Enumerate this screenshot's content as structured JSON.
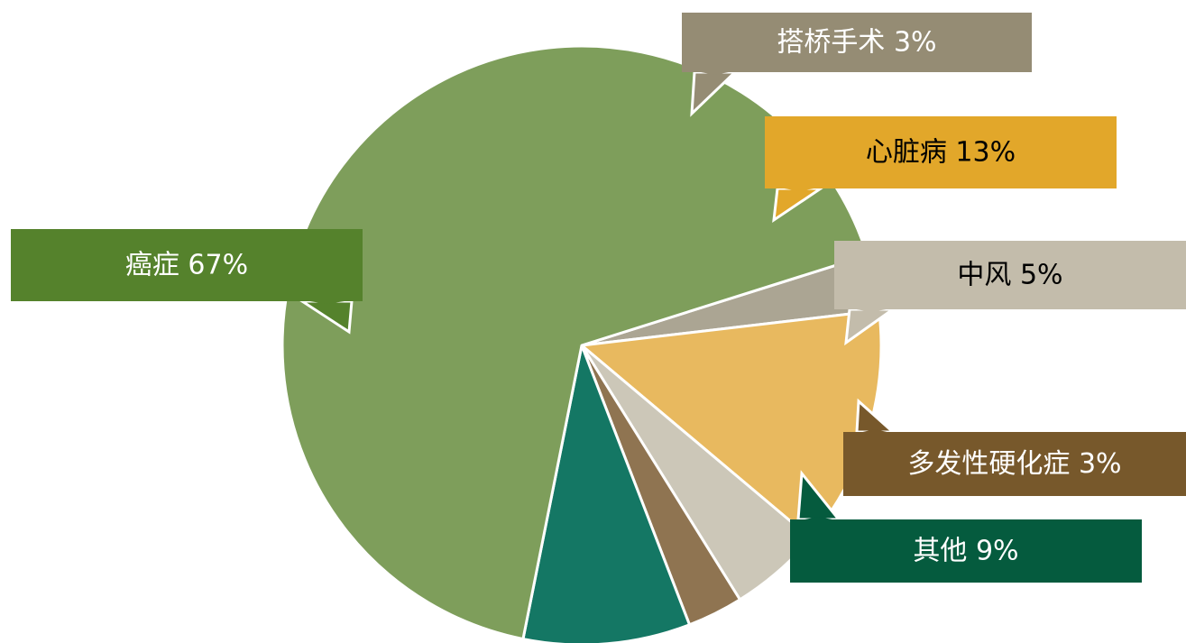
{
  "chart_data": {
    "type": "pie",
    "title": "",
    "slices": [
      {
        "label": "搭桥手术 3%",
        "value": 3,
        "color": "#aba593",
        "callout_color": "#958c74",
        "text_color": "#ffffff"
      },
      {
        "label": "心脏病 13%",
        "value": 13,
        "color": "#e8b95f",
        "callout_color": "#e2a72a",
        "text_color": "#000000"
      },
      {
        "label": "中风 5%",
        "value": 5,
        "color": "#ccc7b8",
        "callout_color": "#c3bcab",
        "text_color": "#000000"
      },
      {
        "label": "多发性硬化症 3%",
        "value": 3,
        "color": "#8f7451",
        "callout_color": "#77582b",
        "text_color": "#ffffff"
      },
      {
        "label": "其他 9%",
        "value": 9,
        "color": "#147764",
        "callout_color": "#055b3e",
        "text_color": "#ffffff"
      },
      {
        "label": "癌症 67%",
        "value": 67,
        "color": "#7e9e5b",
        "callout_color": "#55822c",
        "text_color": "#ffffff"
      }
    ]
  }
}
